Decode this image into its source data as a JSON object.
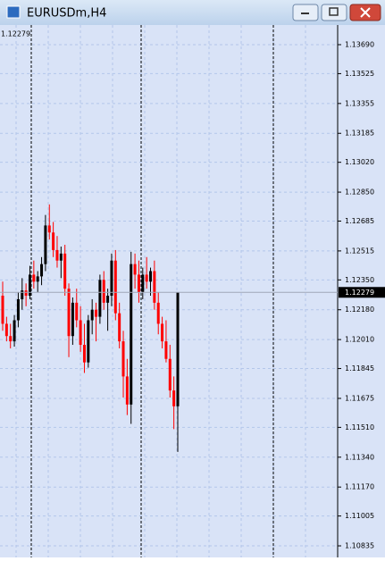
{
  "window": {
    "title": "EURUSDm,H4"
  },
  "chart_data": {
    "type": "candlestick",
    "last_price": 1.12279,
    "categories": [
      null,
      null,
      null,
      null,
      null,
      null,
      null,
      null,
      null,
      null,
      null,
      null,
      null,
      null,
      null,
      null,
      null,
      null,
      null,
      null,
      null,
      null,
      null,
      null,
      null,
      null,
      null,
      null,
      null,
      null,
      null,
      null,
      null,
      null,
      null,
      null,
      null,
      null,
      null,
      null,
      null,
      null,
      null,
      null,
      null,
      null
    ],
    "open": [
      1.1226,
      1.121,
      1.1203,
      1.12,
      1.1212,
      1.1224,
      1.1229,
      1.1226,
      1.1238,
      1.1234,
      1.1237,
      1.1244,
      1.1266,
      1.1262,
      1.1252,
      1.1246,
      1.125,
      1.123,
      1.1203,
      1.1222,
      1.1212,
      1.1198,
      1.1188,
      1.1212,
      1.1218,
      1.1214,
      1.1235,
      1.1222,
      1.1226,
      1.1246,
      1.1216,
      1.12,
      1.118,
      1.1164,
      1.1244,
      1.1238,
      1.1228,
      1.1238,
      1.1234,
      1.124,
      1.1222,
      1.121,
      1.12,
      1.119,
      1.1172,
      1.1163
    ],
    "high": [
      1.1234,
      1.1214,
      1.121,
      1.1215,
      1.1228,
      1.1236,
      1.1233,
      1.1243,
      1.1246,
      1.124,
      1.1248,
      1.1272,
      1.1278,
      1.1268,
      1.126,
      1.1254,
      1.1255,
      1.1233,
      1.1225,
      1.123,
      1.122,
      1.121,
      1.1215,
      1.1224,
      1.1222,
      1.1238,
      1.124,
      1.123,
      1.125,
      1.1252,
      1.1222,
      1.1206,
      1.119,
      1.1251,
      1.125,
      1.1246,
      1.1242,
      1.1248,
      1.1242,
      1.1246,
      1.1228,
      1.1214,
      1.1212,
      1.1198,
      1.118,
      1.12279
    ],
    "low": [
      1.1206,
      1.12,
      1.1196,
      1.1197,
      1.1208,
      1.1218,
      1.122,
      1.1224,
      1.123,
      1.1228,
      1.1232,
      1.124,
      1.1258,
      1.1248,
      1.1242,
      1.1236,
      1.1226,
      1.1191,
      1.1198,
      1.1208,
      1.1194,
      1.1182,
      1.1185,
      1.1204,
      1.12,
      1.121,
      1.1218,
      1.1206,
      1.122,
      1.1212,
      1.1196,
      1.1168,
      1.1158,
      1.1153,
      1.123,
      1.1222,
      1.1224,
      1.123,
      1.1226,
      1.1218,
      1.1204,
      1.1196,
      1.1188,
      1.1168,
      1.115,
      1.1137
    ],
    "close": [
      1.121,
      1.1203,
      1.12,
      1.1212,
      1.1224,
      1.1229,
      1.1226,
      1.1238,
      1.1234,
      1.1237,
      1.1244,
      1.1266,
      1.1262,
      1.1252,
      1.1246,
      1.125,
      1.123,
      1.1203,
      1.1222,
      1.1212,
      1.1198,
      1.1188,
      1.1212,
      1.1218,
      1.1214,
      1.1235,
      1.1222,
      1.1226,
      1.1246,
      1.1216,
      1.12,
      1.118,
      1.1164,
      1.1244,
      1.1238,
      1.1228,
      1.1238,
      1.1234,
      1.124,
      1.1222,
      1.121,
      1.12,
      1.119,
      1.1172,
      1.1163,
      1.12279
    ],
    "up_color": "#000000",
    "down_color": "#ff0000",
    "ylim": [
      1.10769,
      1.13802
    ],
    "yticks": [
      {
        "value": 1.1369,
        "label": "1.13690"
      },
      1.13525,
      1.13355,
      1.13185,
      {
        "value": 1.1302,
        "label": "1.13020"
      },
      {
        "value": 1.1285,
        "label": "1.12850"
      },
      1.12685,
      1.12515,
      {
        "value": 1.1235,
        "label": "1.12350"
      },
      {
        "value": 1.1218,
        "label": "1.12180"
      },
      {
        "value": 1.1201,
        "label": "1.12010"
      },
      1.11845,
      1.11675,
      {
        "value": 1.1151,
        "label": "1.11510"
      },
      {
        "value": 1.1134,
        "label": "1.11340"
      },
      {
        "value": 1.1117,
        "label": "1.11170"
      },
      1.11005,
      1.10835
    ],
    "grid": true
  }
}
